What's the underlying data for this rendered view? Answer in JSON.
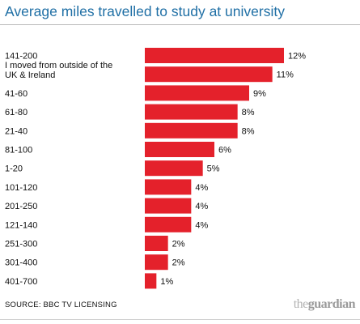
{
  "header": {
    "title": "Average miles travelled to study at university"
  },
  "footer": {
    "source": "SOURCE: BBC TV LICENSING",
    "brand_prefix": "the",
    "brand_name": "guardian"
  },
  "colors": {
    "bar": "#e4212b",
    "title": "#1f6fa5"
  },
  "chart_data": {
    "type": "bar",
    "orientation": "horizontal",
    "title": "Average miles travelled to study at university",
    "categories": [
      "141-200",
      "I moved from outside of the UK & Ireland",
      "41-60",
      "61-80",
      "21-40",
      "81-100",
      "1-20",
      "101-120",
      "201-250",
      "121-140",
      "251-300",
      "301-400",
      "401-700"
    ],
    "category_lines": [
      [
        "141-200"
      ],
      [
        "I moved from outside of the",
        "UK & Ireland"
      ],
      [
        "41-60"
      ],
      [
        "61-80"
      ],
      [
        "21-40"
      ],
      [
        "81-100"
      ],
      [
        "1-20"
      ],
      [
        "101-120"
      ],
      [
        "201-250"
      ],
      [
        "121-140"
      ],
      [
        "251-300"
      ],
      [
        "301-400"
      ],
      [
        "401-700"
      ]
    ],
    "values": [
      12,
      11,
      9,
      8,
      8,
      6,
      5,
      4,
      4,
      4,
      2,
      2,
      1
    ],
    "value_labels": [
      "12%",
      "11%",
      "9%",
      "8%",
      "8%",
      "6%",
      "5%",
      "4%",
      "4%",
      "4%",
      "2%",
      "2%",
      "1%"
    ],
    "unit": "%",
    "xlim": [
      0,
      12
    ],
    "grid": false,
    "legend": "none"
  }
}
